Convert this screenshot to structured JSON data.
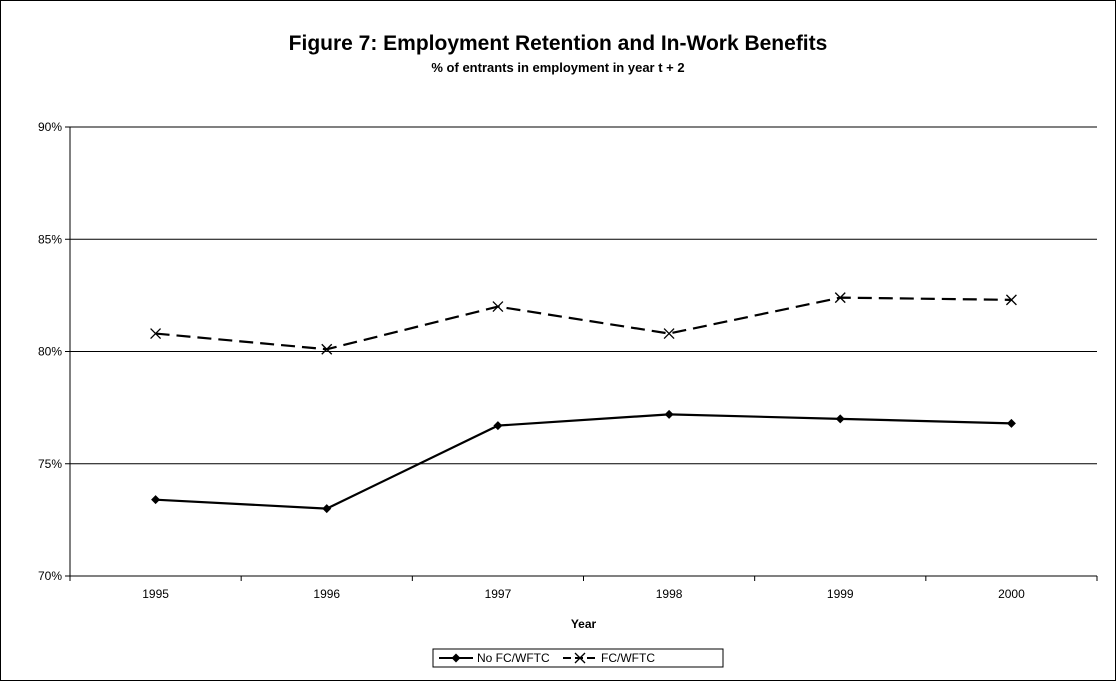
{
  "chart_data": {
    "type": "line",
    "title": "Figure 7: Employment Retention and In-Work Benefits",
    "subtitle": "% of entrants in employment in year t + 2",
    "xlabel": "Year",
    "ylabel": "",
    "categories": [
      "1995",
      "1996",
      "1997",
      "1998",
      "1999",
      "2000"
    ],
    "y_ticks": [
      "70%",
      "75%",
      "80%",
      "85%",
      "90%"
    ],
    "ylim": [
      70,
      90
    ],
    "grid": true,
    "legend_position": "bottom",
    "series": [
      {
        "name": "No FC/WFTC",
        "values": [
          73.4,
          73.0,
          76.7,
          77.2,
          77.0,
          76.8
        ],
        "marker": "diamond",
        "line_style": "solid",
        "color": "#000000"
      },
      {
        "name": "FC/WFTC",
        "values": [
          80.8,
          80.1,
          82.0,
          80.8,
          82.4,
          82.3
        ],
        "marker": "x",
        "line_style": "dashed",
        "color": "#000000"
      }
    ]
  }
}
